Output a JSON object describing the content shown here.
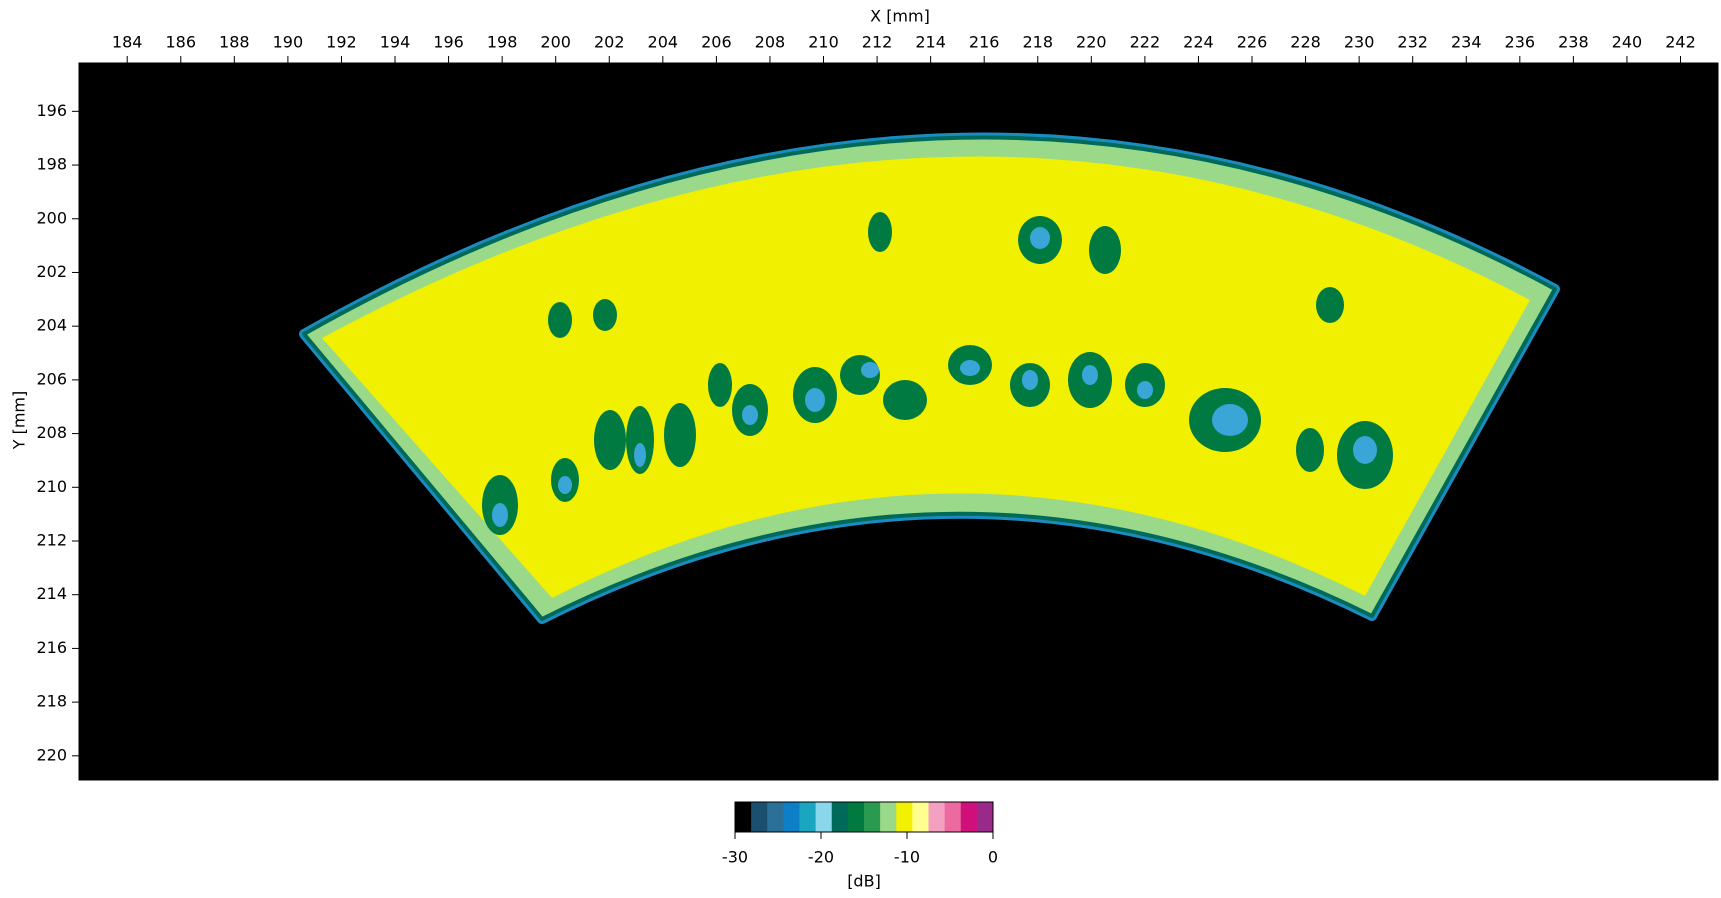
{
  "chart_data": {
    "type": "heatmap",
    "xlabel": "X [mm]",
    "ylabel": "Y [mm]",
    "xlim": [
      182.2,
      243.4
    ],
    "ylim": [
      194.2,
      220.9
    ],
    "xticks": [
      184,
      186,
      188,
      190,
      192,
      194,
      196,
      198,
      200,
      202,
      204,
      206,
      208,
      210,
      212,
      214,
      216,
      218,
      220,
      222,
      224,
      226,
      228,
      230,
      232,
      234,
      236,
      238,
      240,
      242
    ],
    "yticks": [
      196,
      198,
      200,
      202,
      204,
      206,
      208,
      210,
      212,
      214,
      216,
      218,
      220
    ],
    "colorbar": {
      "label": "[dB]",
      "lim": [
        -30,
        0
      ],
      "ticks": [
        -30,
        -20,
        -10,
        0
      ],
      "colors": [
        "#000000",
        "#1a4f70",
        "#2a7098",
        "#0c7fc6",
        "#1aa6c0",
        "#8ad6ea",
        "#006a5a",
        "#007a40",
        "#2a9a50",
        "#9ad88a",
        "#f0f000",
        "#ffff90",
        "#f4a0c0",
        "#ec6aa0",
        "#d0107a",
        "#9a2a8a"
      ]
    }
  }
}
